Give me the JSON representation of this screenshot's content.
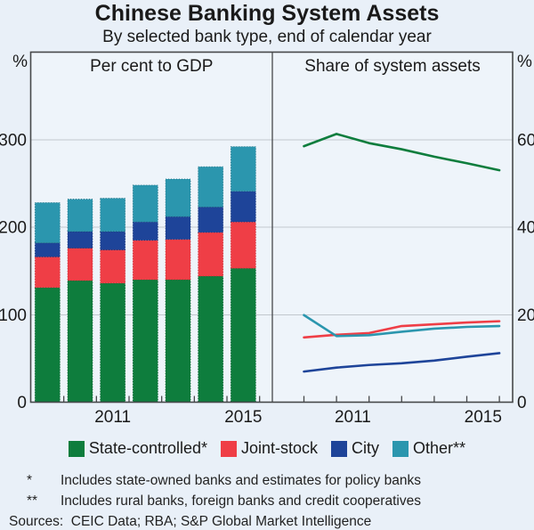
{
  "header": {
    "title": "Chinese Banking System Assets",
    "subtitle": "By selected bank type, end of calendar year"
  },
  "chart_data": [
    {
      "type": "bar",
      "stacked": true,
      "panel_title": "Per cent to GDP",
      "unit": "%",
      "categories": [
        2009,
        2010,
        2011,
        2012,
        2013,
        2014,
        2015
      ],
      "x_tick_labels": [
        "",
        "",
        "2011",
        "",
        "",
        "",
        "2015"
      ],
      "ylim": [
        0,
        400
      ],
      "yticks": [
        0,
        100,
        200,
        300
      ],
      "grid": true,
      "series": [
        {
          "name": "State-controlled",
          "color": "#0e7d3d",
          "edge": "#0a5c2d",
          "values": [
            131,
            139,
            136,
            140,
            140,
            144,
            153
          ]
        },
        {
          "name": "Joint-stock",
          "color": "#ef3e46",
          "edge": "#c12830",
          "values": [
            35,
            37,
            38,
            45,
            46,
            50,
            53
          ]
        },
        {
          "name": "City",
          "color": "#1e4499",
          "edge": "#142f6e",
          "values": [
            16,
            19,
            21,
            21,
            26,
            29,
            35
          ]
        },
        {
          "name": "Other",
          "color": "#2b96ae",
          "edge": "#1d6a7c",
          "values": [
            46,
            37,
            38,
            42,
            43,
            46,
            51
          ]
        }
      ]
    },
    {
      "type": "line",
      "panel_title": "Share of system assets",
      "unit": "%",
      "categories": [
        2009,
        2010,
        2011,
        2012,
        2013,
        2014,
        2015
      ],
      "x_tick_labels": [
        "",
        "",
        "2011",
        "",
        "",
        "",
        "2015"
      ],
      "ylim": [
        0,
        80
      ],
      "yticks": [
        0,
        20,
        40,
        60
      ],
      "grid": true,
      "series": [
        {
          "name": "State-controlled",
          "color": "#0e7d3d",
          "values": [
            58.5,
            61.3,
            59.2,
            57.8,
            56.1,
            54.6,
            53.0
          ]
        },
        {
          "name": "Joint-stock",
          "color": "#ef3e46",
          "values": [
            14.8,
            15.4,
            15.8,
            17.4,
            17.8,
            18.2,
            18.5
          ]
        },
        {
          "name": "City",
          "color": "#1e4499",
          "values": [
            7.0,
            7.9,
            8.5,
            8.9,
            9.5,
            10.4,
            11.2
          ]
        },
        {
          "name": "Other",
          "color": "#2b96ae",
          "values": [
            19.9,
            15.1,
            15.3,
            16.1,
            16.8,
            17.2,
            17.4
          ]
        }
      ]
    }
  ],
  "legend": [
    {
      "label": "State-controlled*",
      "color": "#0e7d3d"
    },
    {
      "label": "Joint-stock",
      "color": "#ef3e46"
    },
    {
      "label": "City",
      "color": "#1e4499"
    },
    {
      "label": "Other**",
      "color": "#2b96ae"
    }
  ],
  "footnotes": [
    {
      "marker": "*",
      "text": "Includes state-owned banks and estimates for policy banks"
    },
    {
      "marker": "**",
      "text": "Includes rural banks, foreign banks and credit cooperatives"
    }
  ],
  "sources": "Sources:  CEIC Data; RBA; S&P Global Market Intelligence",
  "colors": {
    "background": "#e9f0f8",
    "plot_background": "#eef4fa",
    "gridline": "#c2c8ce",
    "axis": "#46484a",
    "text": "#1a1a1a"
  }
}
